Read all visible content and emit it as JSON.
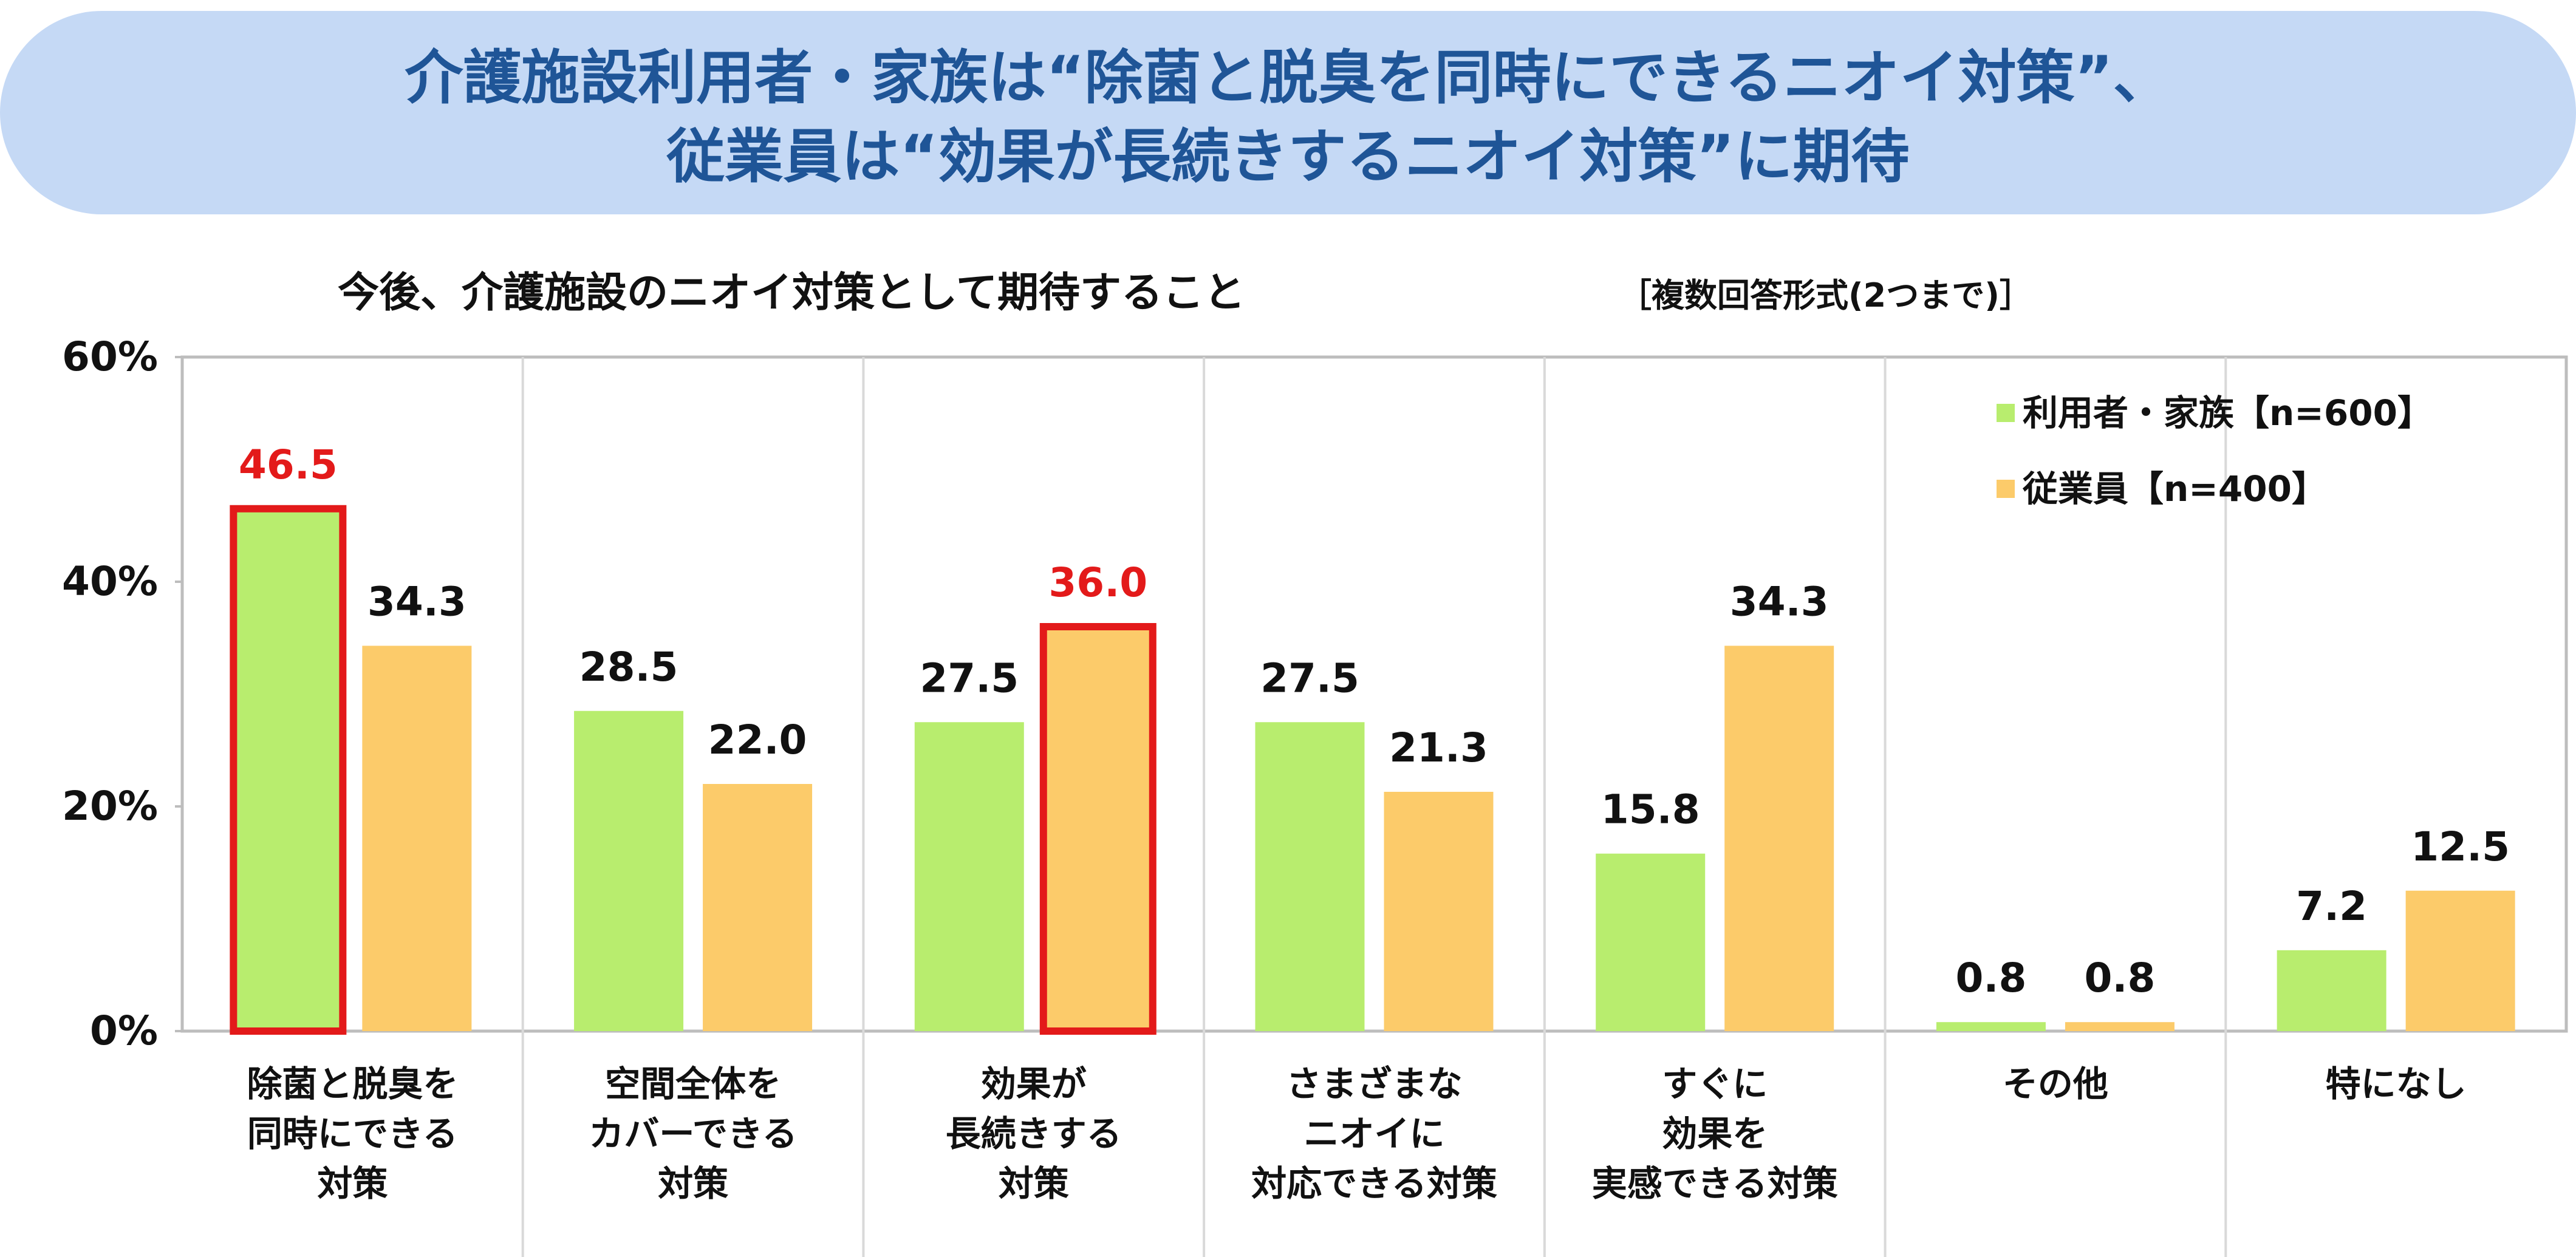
{
  "banner": {
    "line1": "介護施設利用者・家族は“除菌と脱臭を同時にできるニオイ対策”、",
    "line2": "従業員は“効果が長続きするニオイ対策”に期待"
  },
  "colors": {
    "banner_bg": "#c5d9f5",
    "banner_text": "#1f5597",
    "series_green": "#b8ed6e",
    "series_orange": "#fccb6a",
    "highlight": "#e31a1a"
  },
  "chart_data": {
    "type": "bar",
    "title": "今後、介護施設のニオイ対策として期待すること",
    "subtitle": "［複数回答形式(2つまで)］",
    "ylim": [
      0,
      60
    ],
    "yticks": [
      "0%",
      "20%",
      "40%",
      "60%"
    ],
    "ytick_values": [
      0,
      20,
      40,
      60
    ],
    "categories": [
      [
        "除菌と脱臭を",
        "同時にできる",
        "対策"
      ],
      [
        "空間全体を",
        "カバーできる",
        "対策"
      ],
      [
        "効果が",
        "長続きする",
        "対策"
      ],
      [
        "さまざまな",
        "ニオイに",
        "対応できる対策"
      ],
      [
        "すぐに",
        "効果を",
        "実感できる対策"
      ],
      [
        "その他"
      ],
      [
        "特になし"
      ]
    ],
    "series": [
      {
        "name": "利用者・家族【n=600】",
        "values": [
          46.5,
          28.5,
          27.5,
          27.5,
          15.8,
          0.8,
          7.2
        ],
        "labels": [
          "46.5",
          "28.5",
          "27.5",
          "27.5",
          "15.8",
          "0.8",
          "7.2"
        ],
        "color": "#b8ed6e"
      },
      {
        "name": "従業員【n=400】",
        "values": [
          34.3,
          22.0,
          36.0,
          21.3,
          34.3,
          0.8,
          12.5
        ],
        "labels": [
          "34.3",
          "22.0",
          "36.0",
          "21.3",
          "34.3",
          "0.8",
          "12.5"
        ],
        "color": "#fccb6a"
      }
    ],
    "highlighted": [
      {
        "series": 0,
        "index": 0
      },
      {
        "series": 1,
        "index": 2
      }
    ],
    "legend": "top-right",
    "grid": false
  }
}
